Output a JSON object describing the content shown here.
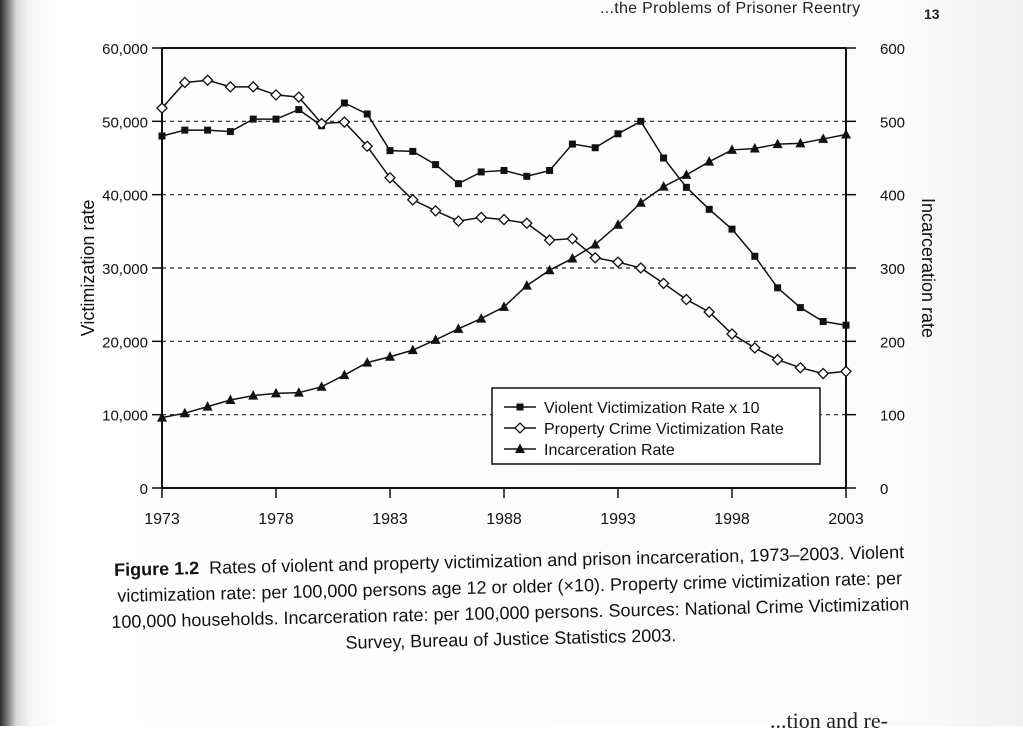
{
  "page": {
    "running_head": "...the Problems of Prisoner Reentry",
    "page_number": "13",
    "bottom_fragment": "...tion and re-"
  },
  "caption": {
    "label": "Figure 1.2",
    "text": "Rates of violent and property victimization and prison incarceration, 1973–2003. Violent victimization rate: per 100,000 persons age 12 or older (×10). Property crime victimization rate: per 100,000 households. Incarceration rate: per 100,000 persons. Sources: National Crime Victimization Survey, Bureau of Justice Statistics 2003."
  },
  "chart_data": {
    "type": "line",
    "title": "",
    "xlabel": "",
    "ylabel": "Victimization rate",
    "y2label": "Incarceration rate",
    "xlim": [
      1973,
      2003
    ],
    "ylim": [
      0,
      60000
    ],
    "y2lim": [
      0,
      600
    ],
    "x_ticks": [
      1973,
      1978,
      1983,
      1988,
      1993,
      1998,
      2003
    ],
    "y_ticks": [
      0,
      10000,
      20000,
      30000,
      40000,
      50000,
      60000
    ],
    "y_tick_labels": [
      "0",
      "10,000",
      "20,000",
      "30,000",
      "40,000",
      "50,000",
      "60,000"
    ],
    "y2_ticks": [
      0,
      100,
      200,
      300,
      400,
      500,
      600
    ],
    "grid": "horizontal dashed",
    "legend_position": "lower-right",
    "x": [
      1973,
      1974,
      1975,
      1976,
      1977,
      1978,
      1979,
      1980,
      1981,
      1982,
      1983,
      1984,
      1985,
      1986,
      1987,
      1988,
      1989,
      1990,
      1991,
      1992,
      1993,
      1994,
      1995,
      1996,
      1997,
      1998,
      1999,
      2000,
      2001,
      2002,
      2003
    ],
    "series": [
      {
        "name": "Violent Victimization Rate x 10",
        "marker": "square",
        "axis": "left",
        "values": [
          48000,
          48800,
          48800,
          48600,
          50300,
          50300,
          51600,
          49400,
          52500,
          51000,
          46000,
          45900,
          44100,
          41500,
          43100,
          43300,
          42500,
          43300,
          46900,
          46400,
          48300,
          50000,
          45000,
          41000,
          38000,
          35300,
          31600,
          27300,
          24600,
          22700,
          22200
        ]
      },
      {
        "name": "Property Crime Victimization Rate",
        "marker": "diamond",
        "axis": "left",
        "values": [
          51800,
          55300,
          55600,
          54700,
          54700,
          53600,
          53300,
          49700,
          49900,
          46600,
          42300,
          39300,
          37800,
          36400,
          36900,
          36600,
          36100,
          33800,
          34000,
          31400,
          30800,
          30000,
          27900,
          25700,
          24000,
          21000,
          19100,
          17500,
          16400,
          15600,
          15900
        ]
      },
      {
        "name": "Incarceration Rate",
        "marker": "triangle",
        "axis": "right",
        "values": [
          96,
          102,
          111,
          120,
          126,
          129,
          130,
          138,
          154,
          171,
          179,
          188,
          202,
          217,
          231,
          247,
          276,
          297,
          313,
          332,
          359,
          389,
          411,
          427,
          445,
          461,
          463,
          469,
          470,
          476,
          482
        ]
      }
    ]
  }
}
